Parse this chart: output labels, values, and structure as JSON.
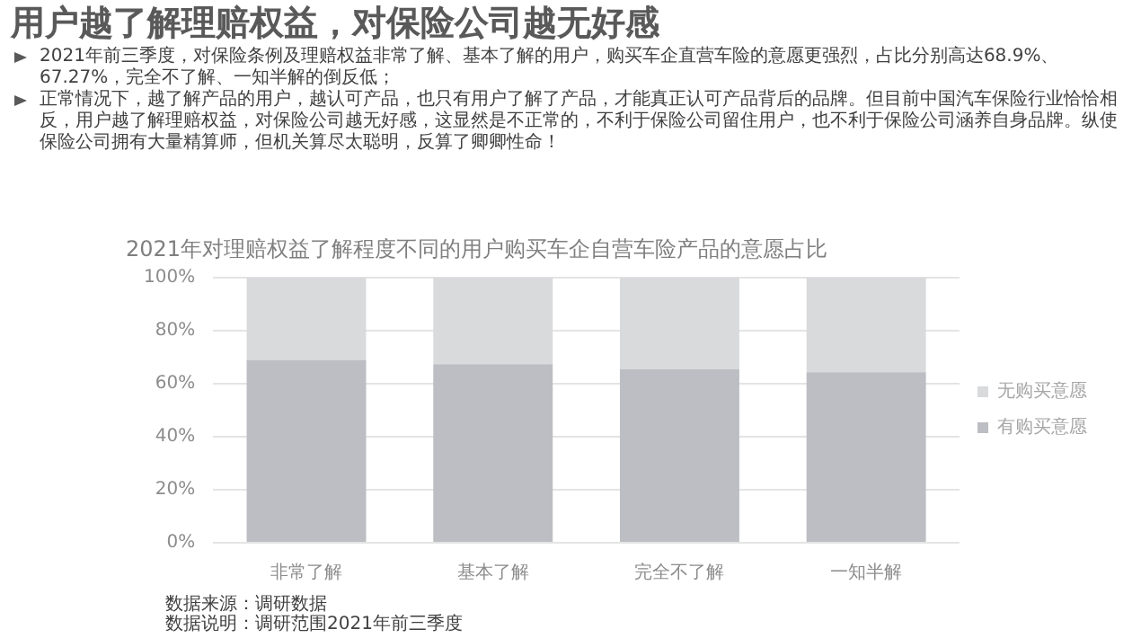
{
  "chart_data": {
    "type": "bar",
    "title": "用户越了解理赔权益，对保险公司越无好感",
    "subtitle": "2021年对理赔权益了解程度不同的用户购买车企自营车险产品的意愿占比",
    "categories": [
      "非常了解",
      "基本了解",
      "完全不了解",
      "一知半解"
    ],
    "series": [
      {
        "name": "有购买意愿",
        "color": "#bcbec3",
        "values": [
          68.9,
          67.3,
          65.4,
          64.3
        ]
      },
      {
        "name": "无购买意愿",
        "color": "#d9dadc",
        "values": [
          31.1,
          32.7,
          34.6,
          35.7
        ]
      }
    ],
    "stacked": true,
    "ylim": [
      0,
      100
    ],
    "yticks": [
      {
        "value": 0,
        "label": "0%"
      },
      {
        "value": 20,
        "label": "20%"
      },
      {
        "value": 40,
        "label": "40%"
      },
      {
        "value": 60,
        "label": "60%"
      },
      {
        "value": 80,
        "label": "80%"
      },
      {
        "value": 100,
        "label": "100%"
      }
    ],
    "grid": "y",
    "legend": "right",
    "annotations": [
      "2021年前三季度，对保险条例及理赔权益非常了解、基本了解的用户，购买车企直营车险的意愿更强烈，占比分别高达68.9%、67.27%，完全不了解、一知半解的倒反低；",
      "正常情况下，越了解产品的用户，越认可产品，也只有用户了解了产品，才能真正认可产品背后的品牌。但目前中国汽车保险行业恰恰相反，用户越了解理赔权益，对保险公司越无好感，这显然是不正常的，不利于保险公司留住用户，也不利于保险公司涵养自身品牌。纵使保险公司拥有大量精算师，但机关算尽太聪明，反算了卿卿性命！",
      "数据来源：调研数据",
      "数据说明：调研范围2021年前三季度"
    ]
  }
}
